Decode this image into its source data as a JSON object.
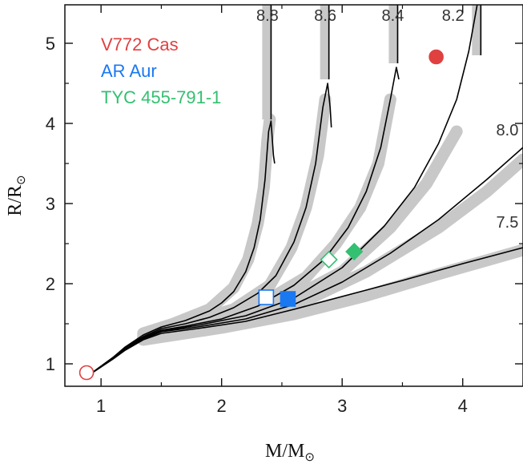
{
  "chart_data": {
    "type": "line",
    "xlabel": "M/M",
    "xlabel_sub": "⊙",
    "ylabel": "R/R",
    "ylabel_sub": "⊙",
    "xlim": [
      0.7,
      4.5
    ],
    "ylim": [
      0.72,
      5.48
    ],
    "xticks": [
      1,
      2,
      3,
      4
    ],
    "yticks": [
      1,
      2,
      3,
      4,
      5
    ],
    "xtick_labels": [
      "1",
      "2",
      "3",
      "4"
    ],
    "ytick_labels": [
      "1",
      "2",
      "3",
      "4",
      "5"
    ],
    "legend": [
      {
        "name": "V772 Cas",
        "color": "#e04040"
      },
      {
        "name": "AR Aur",
        "color": "#1a78f0"
      },
      {
        "name": "TYC 455-791-1",
        "color": "#33c070"
      }
    ],
    "isochrones": [
      {
        "label": "8.8",
        "label_at": [
          2.38,
          5.28
        ],
        "points": [
          [
            0.9,
            0.86
          ],
          [
            1.0,
            0.97
          ],
          [
            1.1,
            1.08
          ],
          [
            1.2,
            1.21
          ],
          [
            1.35,
            1.36
          ],
          [
            1.5,
            1.46
          ],
          [
            1.7,
            1.54
          ],
          [
            1.9,
            1.66
          ],
          [
            2.0,
            1.76
          ],
          [
            2.1,
            1.9
          ],
          [
            2.2,
            2.15
          ],
          [
            2.27,
            2.45
          ],
          [
            2.32,
            2.8
          ],
          [
            2.36,
            3.3
          ],
          [
            2.39,
            3.9
          ],
          [
            2.41,
            4.03
          ],
          [
            2.43,
            3.6
          ],
          [
            2.44,
            3.5
          ]
        ],
        "vertical": [
          2.41,
          4.05,
          5.48
        ]
      },
      {
        "label": "8.6",
        "label_at": [
          2.86,
          5.28
        ],
        "points": [
          [
            0.9,
            0.86
          ],
          [
            1.0,
            0.97
          ],
          [
            1.1,
            1.08
          ],
          [
            1.2,
            1.2
          ],
          [
            1.35,
            1.34
          ],
          [
            1.5,
            1.44
          ],
          [
            1.7,
            1.5
          ],
          [
            1.9,
            1.58
          ],
          [
            2.1,
            1.7
          ],
          [
            2.3,
            1.88
          ],
          [
            2.45,
            2.1
          ],
          [
            2.6,
            2.52
          ],
          [
            2.7,
            2.95
          ],
          [
            2.78,
            3.5
          ],
          [
            2.84,
            4.2
          ],
          [
            2.88,
            4.5
          ],
          [
            2.9,
            4.2
          ],
          [
            2.91,
            3.95
          ]
        ],
        "vertical": [
          2.89,
          4.55,
          5.48
        ]
      },
      {
        "label": "8.4",
        "label_at": [
          3.42,
          5.28
        ],
        "points": [
          [
            0.9,
            0.86
          ],
          [
            1.0,
            0.97
          ],
          [
            1.1,
            1.08
          ],
          [
            1.2,
            1.2
          ],
          [
            1.35,
            1.33
          ],
          [
            1.5,
            1.42
          ],
          [
            1.7,
            1.47
          ],
          [
            2.0,
            1.56
          ],
          [
            2.3,
            1.72
          ],
          [
            2.6,
            1.98
          ],
          [
            2.85,
            2.3
          ],
          [
            3.05,
            2.7
          ],
          [
            3.2,
            3.15
          ],
          [
            3.32,
            3.7
          ],
          [
            3.4,
            4.3
          ],
          [
            3.45,
            4.7
          ],
          [
            3.47,
            4.55
          ]
        ],
        "vertical": [
          3.46,
          4.75,
          5.48
        ]
      },
      {
        "label": "8.2",
        "label_at": [
          3.92,
          5.28
        ],
        "points": [
          [
            0.9,
            0.86
          ],
          [
            1.0,
            0.97
          ],
          [
            1.1,
            1.07
          ],
          [
            1.2,
            1.18
          ],
          [
            1.35,
            1.32
          ],
          [
            1.5,
            1.41
          ],
          [
            1.8,
            1.48
          ],
          [
            2.2,
            1.6
          ],
          [
            2.6,
            1.82
          ],
          [
            3.0,
            2.2
          ],
          [
            3.35,
            2.72
          ],
          [
            3.6,
            3.2
          ],
          [
            3.8,
            3.75
          ],
          [
            3.95,
            4.3
          ],
          [
            4.05,
            4.9
          ],
          [
            4.12,
            5.48
          ]
        ],
        "vertical": [
          4.15,
          4.85,
          5.48
        ]
      },
      {
        "label": "8.0",
        "label_at": [
          4.37,
          3.85
        ],
        "points": [
          [
            0.9,
            0.86
          ],
          [
            1.0,
            0.97
          ],
          [
            1.1,
            1.07
          ],
          [
            1.2,
            1.18
          ],
          [
            1.35,
            1.31
          ],
          [
            1.5,
            1.4
          ],
          [
            1.8,
            1.46
          ],
          [
            2.2,
            1.56
          ],
          [
            2.6,
            1.74
          ],
          [
            3.0,
            2.02
          ],
          [
            3.4,
            2.38
          ],
          [
            3.8,
            2.8
          ],
          [
            4.2,
            3.3
          ],
          [
            4.5,
            3.7
          ]
        ]
      },
      {
        "label": "7.5",
        "label_at": [
          4.37,
          2.7
        ],
        "points": [
          [
            0.9,
            0.86
          ],
          [
            1.0,
            0.96
          ],
          [
            1.1,
            1.06
          ],
          [
            1.2,
            1.17
          ],
          [
            1.35,
            1.3
          ],
          [
            1.5,
            1.38
          ],
          [
            1.8,
            1.44
          ],
          [
            2.2,
            1.53
          ],
          [
            2.6,
            1.68
          ],
          [
            3.0,
            1.84
          ],
          [
            3.5,
            2.04
          ],
          [
            4.0,
            2.25
          ],
          [
            4.5,
            2.45
          ]
        ]
      }
    ],
    "bands": [
      [
        [
          1.35,
          1.38
        ],
        [
          1.6,
          1.5
        ],
        [
          1.9,
          1.68
        ],
        [
          2.1,
          1.95
        ],
        [
          2.22,
          2.3
        ],
        [
          2.3,
          2.75
        ],
        [
          2.35,
          3.2
        ],
        [
          2.38,
          3.8
        ],
        [
          2.4,
          4.05
        ]
      ],
      [
        [
          1.35,
          1.35
        ],
        [
          1.7,
          1.5
        ],
        [
          2.1,
          1.68
        ],
        [
          2.4,
          1.98
        ],
        [
          2.58,
          2.45
        ],
        [
          2.7,
          2.95
        ],
        [
          2.8,
          3.6
        ],
        [
          2.86,
          4.3
        ]
      ],
      [
        [
          1.35,
          1.33
        ],
        [
          1.8,
          1.47
        ],
        [
          2.3,
          1.72
        ],
        [
          2.7,
          2.08
        ],
        [
          2.95,
          2.5
        ],
        [
          3.15,
          2.95
        ],
        [
          3.3,
          3.5
        ],
        [
          3.4,
          4.3
        ]
      ],
      [
        [
          1.35,
          1.32
        ],
        [
          1.9,
          1.48
        ],
        [
          2.5,
          1.75
        ],
        [
          3.0,
          2.15
        ],
        [
          3.4,
          2.7
        ],
        [
          3.7,
          3.25
        ],
        [
          3.95,
          3.9
        ]
      ],
      [
        [
          1.35,
          1.31
        ],
        [
          2.0,
          1.48
        ],
        [
          2.6,
          1.72
        ],
        [
          3.2,
          2.15
        ],
        [
          3.8,
          2.7
        ],
        [
          4.2,
          3.15
        ],
        [
          4.5,
          3.55
        ]
      ],
      [
        [
          1.35,
          1.3
        ],
        [
          2.0,
          1.45
        ],
        [
          2.6,
          1.62
        ],
        [
          3.2,
          1.85
        ],
        [
          3.8,
          2.12
        ],
        [
          4.5,
          2.42
        ]
      ]
    ],
    "stars": [
      {
        "name": "V772 Cas",
        "shape": "circle",
        "color": "#e04040",
        "primary": [
          3.78,
          4.83
        ],
        "secondary": [
          0.88,
          0.89
        ]
      },
      {
        "name": "AR Aur",
        "shape": "square",
        "color": "#1a78f0",
        "primary": [
          2.55,
          1.81
        ],
        "secondary": [
          2.37,
          1.83
        ]
      },
      {
        "name": "TYC 455-791-1",
        "shape": "diamond",
        "color": "#33c070",
        "primary": [
          3.1,
          2.4
        ],
        "secondary": [
          2.89,
          2.3
        ]
      }
    ]
  }
}
